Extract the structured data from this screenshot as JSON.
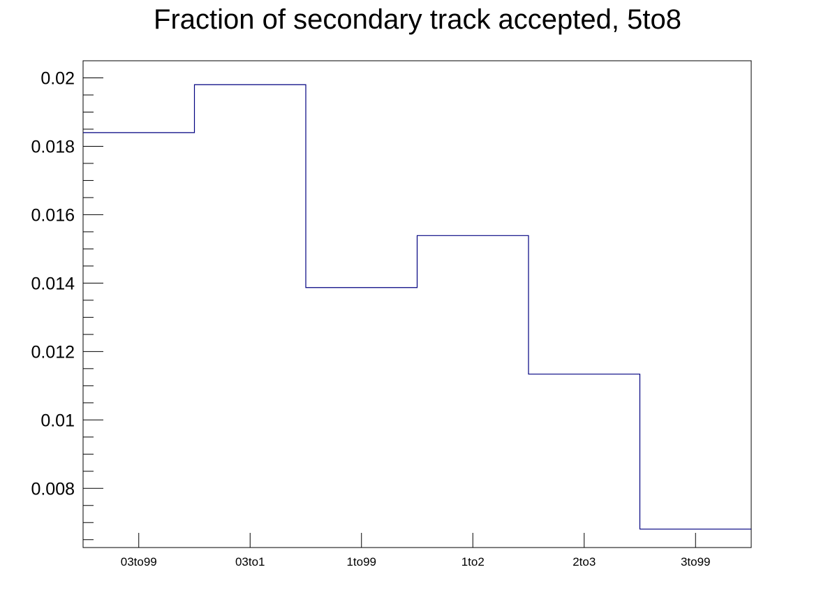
{
  "chart_data": {
    "type": "bar",
    "style": "step-histogram",
    "title": "Fraction of secondary track accepted, 5to8",
    "xlabel": "",
    "ylabel": "",
    "categories": [
      "03to99",
      "03to1",
      "1to99",
      "1to2",
      "2to3",
      "3to99"
    ],
    "values": [
      0.0184,
      0.0198,
      0.01387,
      0.01539,
      0.01134,
      0.00681
    ],
    "ylim": [
      0.00627,
      0.0205
    ],
    "yticks": [
      {
        "value": 0.008,
        "label": "0.008"
      },
      {
        "value": 0.01,
        "label": "0.01"
      },
      {
        "value": 0.012,
        "label": "0.012"
      },
      {
        "value": 0.014,
        "label": "0.014"
      },
      {
        "value": 0.016,
        "label": "0.016"
      },
      {
        "value": 0.018,
        "label": "0.018"
      },
      {
        "value": 0.02,
        "label": "0.02"
      }
    ],
    "minor_tick_step": 0.0005,
    "grid": false,
    "line_color": "#000080",
    "axis_color": "#000000"
  }
}
